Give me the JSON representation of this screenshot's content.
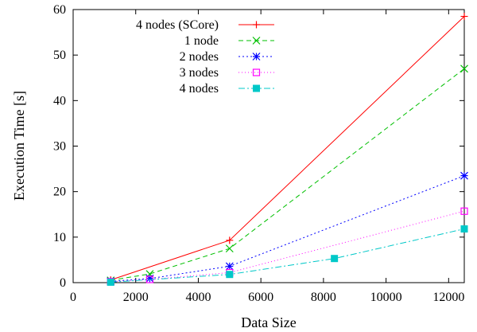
{
  "chart_data": {
    "type": "line",
    "title": "",
    "xlabel": "Data Size",
    "ylabel": "Execution Time [s]",
    "xlim": [
      0,
      12500
    ],
    "ylim": [
      0,
      60
    ],
    "xticks": [
      0,
      2000,
      4000,
      6000,
      8000,
      10000,
      12000
    ],
    "yticks": [
      0,
      10,
      20,
      30,
      40,
      50,
      60
    ],
    "grid": false,
    "legend_position": "top-left",
    "series": [
      {
        "name": "4 nodes (SCore)",
        "color": "#ff0000",
        "marker": "plus",
        "dash": "",
        "x": [
          1200,
          5000,
          12500
        ],
        "y": [
          0.6,
          9.3,
          58.5
        ]
      },
      {
        "name": "1 node",
        "color": "#00c000",
        "marker": "cross",
        "dash": "6,4",
        "x": [
          1200,
          2450,
          5000,
          12500
        ],
        "y": [
          0.5,
          1.9,
          7.5,
          47
        ]
      },
      {
        "name": "2 nodes",
        "color": "#0000ff",
        "marker": "star",
        "dash": "2,3",
        "x": [
          1200,
          2450,
          5000,
          12500
        ],
        "y": [
          0.3,
          0.9,
          3.6,
          23.5
        ]
      },
      {
        "name": "3 nodes",
        "color": "#ff00ff",
        "marker": "square-open",
        "dash": "1,3",
        "x": [
          1200,
          2450,
          5000,
          12500
        ],
        "y": [
          0.2,
          0.7,
          2.2,
          15.7
        ]
      },
      {
        "name": "4 nodes",
        "color": "#00c8c8",
        "marker": "square-filled",
        "dash": "8,3,2,3",
        "x": [
          1200,
          5000,
          8350,
          12500
        ],
        "y": [
          0.1,
          1.8,
          5.3,
          11.8
        ]
      }
    ]
  }
}
